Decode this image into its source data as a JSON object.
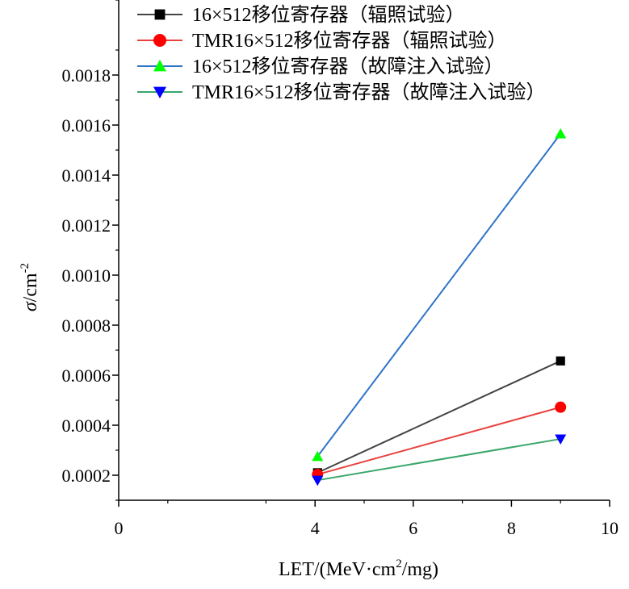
{
  "chart_data": {
    "type": "line",
    "xlabel": "LET/(MeV·cm²/mg)",
    "xlabel_parts": {
      "pre": "LET/(MeV·cm",
      "sup": "2",
      "post": "/mg)"
    },
    "ylabel_parts": {
      "sigma": "σ",
      "mid": "/cm",
      "sup": "-2"
    },
    "xlim": [
      0,
      10
    ],
    "ylim": [
      0.0001,
      0.0021
    ],
    "x_ticks": [
      "0",
      "4",
      "6",
      "8",
      "10"
    ],
    "y_ticks": [
      "0.0002",
      "0.0004",
      "0.0006",
      "0.0008",
      "0.0010",
      "0.0012",
      "0.0014",
      "0.0016",
      "0.0018"
    ],
    "legend_position": "top",
    "series": [
      {
        "name": "16×512移位寄存器（辐照试验）",
        "color": "#444444",
        "marker": "square",
        "marker_color": "#000000",
        "x": [
          4.05,
          9.0
        ],
        "y": [
          0.00021,
          0.000657
        ]
      },
      {
        "name": "TMR16×512移位寄存器（辐照试验）",
        "color": "#e8413e",
        "marker": "circle",
        "marker_color": "#ff0000",
        "x": [
          4.05,
          9.0
        ],
        "y": [
          0.000203,
          0.000472
        ]
      },
      {
        "name": "16×512移位寄存器（故障注入试验）",
        "color": "#2e75c6",
        "marker": "triangle-up",
        "marker_color": "#00ff00",
        "x": [
          4.05,
          9.0
        ],
        "y": [
          0.000275,
          0.001565
        ]
      },
      {
        "name": "TMR16×512移位寄存器（故障注入试验）",
        "color": "#3aa66a",
        "marker": "triangle-down",
        "marker_color": "#0000ff",
        "x": [
          4.05,
          9.0
        ],
        "y": [
          0.00018,
          0.000345
        ]
      }
    ]
  }
}
